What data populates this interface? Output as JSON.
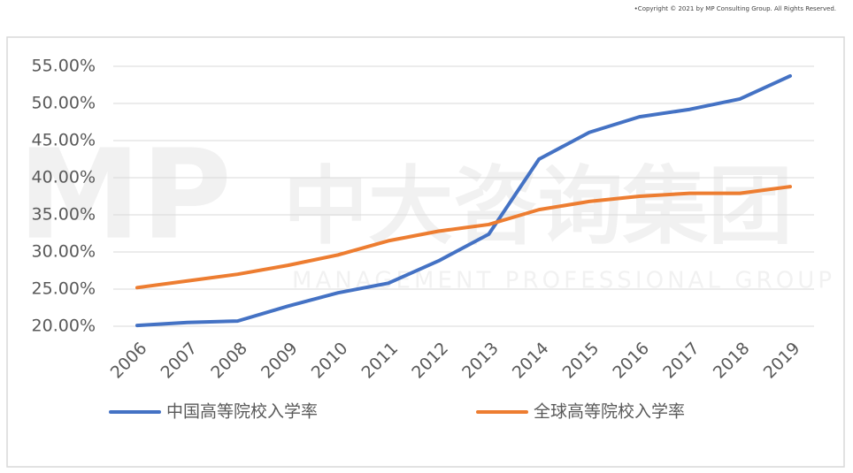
{
  "copyright": "•Copyright © 2021 by MP Consulting Group. All Rights Reserved.",
  "watermark": {
    "logo": "MP",
    "name": "中大咨询集团",
    "subtitle": "MANAGEMENT PROFESSIONAL GROUP"
  },
  "chart_data": {
    "type": "line",
    "categories": [
      "2006",
      "2007",
      "2008",
      "2009",
      "2010",
      "2011",
      "2012",
      "2013",
      "2014",
      "2015",
      "2016",
      "2017",
      "2018",
      "2019"
    ],
    "series": [
      {
        "name": "中国高等院校入学率",
        "color": "#4472c4",
        "values": [
          20.1,
          20.5,
          20.7,
          22.7,
          24.5,
          25.8,
          28.8,
          32.4,
          42.5,
          46.1,
          48.2,
          49.2,
          50.6,
          53.7
        ]
      },
      {
        "name": "全球高等院校入学率",
        "color": "#ed7d31",
        "values": [
          25.2,
          26.1,
          27.0,
          28.2,
          29.6,
          31.5,
          32.8,
          33.7,
          35.7,
          36.8,
          37.5,
          37.9,
          37.9,
          38.8
        ]
      }
    ],
    "ylim": [
      20,
      55
    ],
    "yticks": [
      {
        "value": 20,
        "label": "20.00%"
      },
      {
        "value": 25,
        "label": "25.00%"
      },
      {
        "value": 30,
        "label": "30.00%"
      },
      {
        "value": 35,
        "label": "35.00%"
      },
      {
        "value": 40,
        "label": "40.00%"
      },
      {
        "value": 45,
        "label": "45.00%"
      },
      {
        "value": 50,
        "label": "50.00%"
      },
      {
        "value": 55,
        "label": "55.00%"
      }
    ],
    "grid": true
  }
}
